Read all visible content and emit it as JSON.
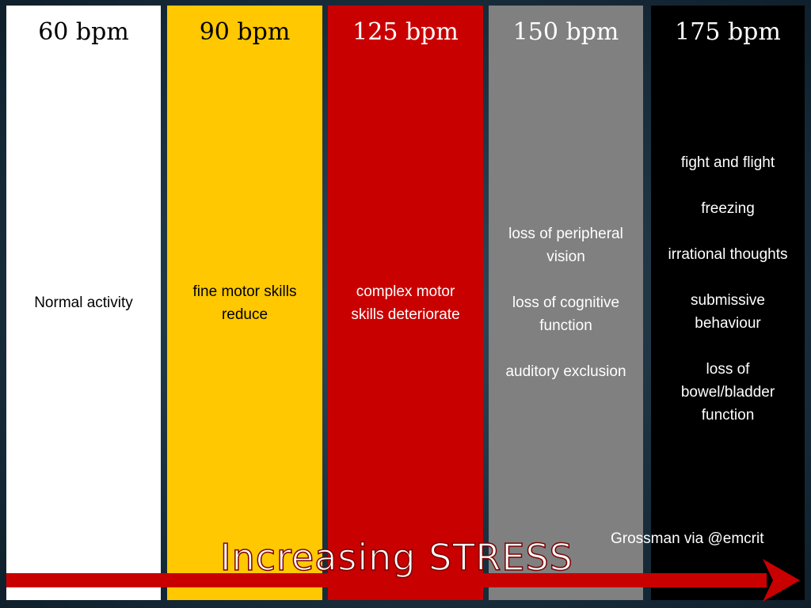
{
  "columns": [
    {
      "heart_rate": "60 bpm",
      "effects": [
        "Normal activity"
      ],
      "color": "#ffffff"
    },
    {
      "heart_rate": "90 bpm",
      "effects": [
        "fine motor skills reduce"
      ],
      "color": "#ffc800"
    },
    {
      "heart_rate": "125 bpm",
      "effects": [
        "complex motor skills deteriorate"
      ],
      "color": "#c90000"
    },
    {
      "heart_rate": "150 bpm",
      "effects": [
        "loss of peripheral vision",
        "loss of cognitive function",
        "auditory exclusion"
      ],
      "color": "#808080"
    },
    {
      "heart_rate": "175 bpm",
      "effects": [
        "fight and flight",
        "freezing",
        "irrational thoughts",
        "submissive behaviour",
        "loss of bowel/bladder function"
      ],
      "color": "#000000"
    }
  ],
  "arrow": {
    "label": "Increasing STRESS",
    "color": "#c90000"
  },
  "credit": "Grossman via @emcrit"
}
